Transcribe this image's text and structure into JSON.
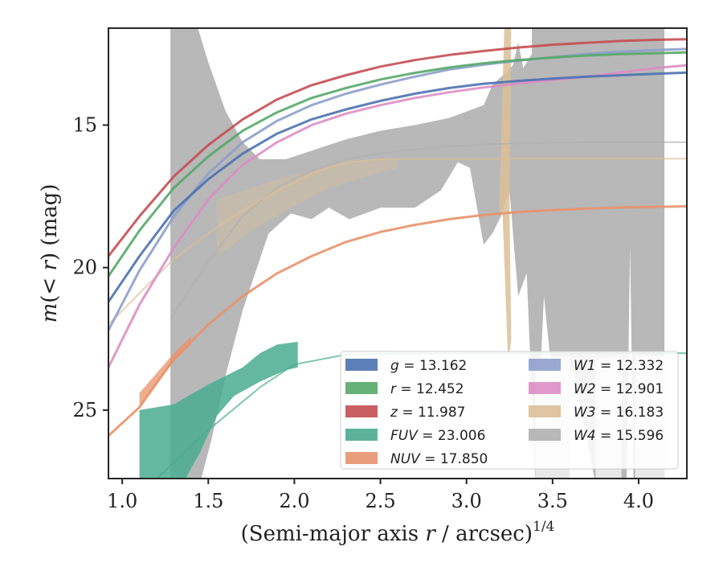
{
  "chart_data": {
    "type": "line",
    "xlabel": "(Semi-major axis r / arcsec)^{1/4}",
    "xlabel_parts": {
      "prefix": "(Semi-major axis ",
      "var": "r",
      "mid": " / arcsec)",
      "sup": "1/4"
    },
    "ylabel": "m(< r) (mag)",
    "ylabel_parts": {
      "m": "m",
      "inner": "(< ",
      "r": "r",
      "close": ")",
      "unit": " (mag)"
    },
    "xlim": [
      0.92,
      4.28
    ],
    "ylim": [
      27.4,
      11.6
    ],
    "y_inverted": true,
    "x_ticks": [
      "1.0",
      "1.5",
      "2.0",
      "2.5",
      "3.0",
      "3.5",
      "4.0"
    ],
    "x_tick_values": [
      1.0,
      1.5,
      2.0,
      2.5,
      3.0,
      3.5,
      4.0
    ],
    "y_ticks": [
      "15",
      "20",
      "25"
    ],
    "y_tick_values": [
      15,
      20,
      25
    ],
    "grid": false,
    "legend_position": "lower-right",
    "series": [
      {
        "key": "g",
        "label": "g = 13.162",
        "color": "#4c72b0",
        "x": [
          0.92,
          1.1,
          1.3,
          1.5,
          1.7,
          1.9,
          2.1,
          2.3,
          2.5,
          2.7,
          2.9,
          3.1,
          3.3,
          3.5,
          3.7,
          3.9,
          4.1,
          4.28
        ],
        "y": [
          21.2,
          19.6,
          18.0,
          16.9,
          16.0,
          15.3,
          14.8,
          14.45,
          14.15,
          13.9,
          13.7,
          13.55,
          13.45,
          13.37,
          13.3,
          13.25,
          13.2,
          13.16
        ]
      },
      {
        "key": "r",
        "label": "r = 12.452",
        "color": "#55a868",
        "x": [
          0.92,
          1.1,
          1.3,
          1.5,
          1.7,
          1.9,
          2.1,
          2.3,
          2.5,
          2.7,
          2.9,
          3.1,
          3.3,
          3.5,
          3.7,
          3.9,
          4.1,
          4.28
        ],
        "y": [
          20.3,
          18.7,
          17.2,
          16.1,
          15.2,
          14.55,
          14.05,
          13.7,
          13.4,
          13.17,
          12.98,
          12.83,
          12.72,
          12.63,
          12.56,
          12.51,
          12.48,
          12.45
        ]
      },
      {
        "key": "z",
        "label": "z = 11.987",
        "color": "#c44e52",
        "x": [
          0.92,
          1.1,
          1.3,
          1.5,
          1.7,
          1.9,
          2.1,
          2.3,
          2.5,
          2.7,
          2.9,
          3.1,
          3.3,
          3.5,
          3.7,
          3.9,
          4.1,
          4.28
        ],
        "y": [
          19.6,
          18.2,
          16.8,
          15.7,
          14.8,
          14.1,
          13.6,
          13.25,
          12.95,
          12.72,
          12.54,
          12.4,
          12.28,
          12.18,
          12.11,
          12.05,
          12.01,
          11.99
        ]
      },
      {
        "key": "FUV",
        "label": "FUV = 23.006",
        "color": "#4aab8f",
        "x": [
          0.92,
          1.2,
          1.5,
          1.8,
          2.0,
          2.3,
          2.6,
          2.9,
          3.2,
          3.5,
          3.8,
          4.1,
          4.28
        ],
        "y": [
          28.2,
          27.4,
          25.7,
          24.2,
          23.4,
          23.05,
          23.02,
          23.01,
          23.01,
          23.0,
          23.0,
          23.0,
          23.0
        ]
      },
      {
        "key": "NUV",
        "label": "NUV = 17.850",
        "color": "#e8926b",
        "x": [
          0.92,
          1.1,
          1.3,
          1.5,
          1.7,
          1.9,
          2.1,
          2.3,
          2.5,
          2.7,
          2.9,
          3.1,
          3.3,
          3.5,
          3.7,
          3.9,
          4.1,
          4.28
        ],
        "y": [
          25.9,
          24.9,
          23.2,
          22.0,
          21.0,
          20.2,
          19.6,
          19.1,
          18.75,
          18.5,
          18.3,
          18.15,
          18.05,
          17.98,
          17.93,
          17.89,
          17.87,
          17.85
        ]
      },
      {
        "key": "W1",
        "label": "W1 = 12.332",
        "color": "#8d9ecb",
        "x": [
          0.92,
          1.1,
          1.3,
          1.5,
          1.7,
          1.9,
          2.1,
          2.3,
          2.5,
          2.7,
          2.9,
          3.1,
          3.3,
          3.5,
          3.7,
          3.9,
          4.1,
          4.28
        ],
        "y": [
          22.2,
          20.1,
          18.2,
          16.7,
          15.6,
          14.85,
          14.3,
          13.9,
          13.58,
          13.3,
          13.05,
          12.88,
          12.74,
          12.62,
          12.5,
          12.42,
          12.37,
          12.33
        ]
      },
      {
        "key": "W2",
        "label": "W2 = 12.901",
        "color": "#dd8ec4",
        "x": [
          0.92,
          1.1,
          1.3,
          1.5,
          1.7,
          1.9,
          2.1,
          2.3,
          2.5,
          2.7,
          2.9,
          3.1,
          3.3,
          3.5,
          3.7,
          3.9,
          4.1,
          4.28
        ],
        "y": [
          23.5,
          21.3,
          19.3,
          17.6,
          16.4,
          15.6,
          15.0,
          14.6,
          14.3,
          14.05,
          13.85,
          13.68,
          13.54,
          13.42,
          13.3,
          13.15,
          13.0,
          12.9
        ]
      },
      {
        "key": "W3",
        "label": "W3 = 16.183",
        "color": "#dcbf96",
        "x": [
          0.92,
          1.1,
          1.3,
          1.5,
          1.7,
          1.9,
          2.1,
          2.3,
          2.5,
          2.7,
          2.9,
          3.1,
          3.3,
          3.5,
          3.7,
          3.9,
          4.1,
          4.28
        ],
        "y": [
          22.0,
          20.9,
          19.7,
          18.8,
          18.0,
          17.3,
          16.7,
          16.3,
          16.2,
          16.19,
          16.19,
          16.19,
          16.18,
          16.18,
          16.18,
          16.18,
          16.18,
          16.18
        ]
      },
      {
        "key": "W4",
        "label": "W4 = 15.596",
        "color": "#b0b0b0",
        "x": [
          1.28,
          1.5,
          1.7,
          1.9,
          2.1,
          2.3,
          2.5,
          2.7,
          2.9,
          3.1,
          3.3,
          3.5,
          3.7,
          3.9,
          4.1,
          4.28
        ],
        "y": [
          21.8,
          19.8,
          18.2,
          17.2,
          16.6,
          16.2,
          16.0,
          15.85,
          15.75,
          15.68,
          15.64,
          15.62,
          15.6,
          15.6,
          15.6,
          15.6
        ]
      }
    ]
  }
}
